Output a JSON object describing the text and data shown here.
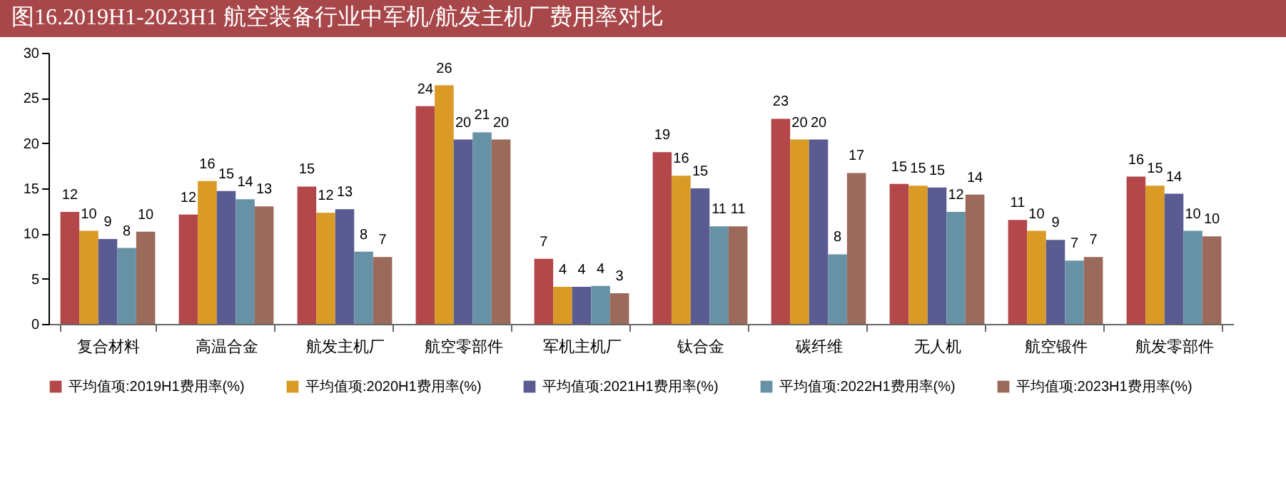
{
  "chart_data": {
    "type": "bar",
    "title": "图16.2019H1-2023H1 航空装备行业中军机/航发主机厂费用率对比",
    "categories": [
      "复合材料",
      "高温合金",
      "航发主机厂",
      "航空零部件",
      "军机主机厂",
      "钛合金",
      "碳纤维",
      "无人机",
      "航空锻件",
      "航发零部件"
    ],
    "series": [
      {
        "name": "平均值项:2019H1费用率(%)",
        "color": "#b3474a",
        "values": [
          12.4,
          12.1,
          15.2,
          24.1,
          7.2,
          19.0,
          22.7,
          15.5,
          11.5,
          16.3
        ],
        "value_labels": [
          "12",
          "12",
          "15",
          "24",
          "7",
          "19",
          "23",
          "15",
          "11",
          "16"
        ]
      },
      {
        "name": "平均值项:2020H1费用率(%)",
        "color": "#d99a26",
        "values": [
          10.3,
          15.8,
          12.3,
          26.4,
          4.1,
          16.4,
          20.4,
          15.3,
          10.3,
          15.3
        ],
        "value_labels": [
          "10",
          "16",
          "12",
          "26",
          "4",
          "16",
          "20",
          "15",
          "10",
          "15"
        ]
      },
      {
        "name": "平均值项:2021H1费用率(%)",
        "color": "#5a5c91",
        "values": [
          9.4,
          14.7,
          12.7,
          20.4,
          4.1,
          15.0,
          20.4,
          15.1,
          9.3,
          14.4
        ],
        "value_labels": [
          "9",
          "15",
          "13",
          "20",
          "4",
          "15",
          "20",
          "15",
          "9",
          "14"
        ]
      },
      {
        "name": "平均值项:2022H1费用率(%)",
        "color": "#6792a6",
        "values": [
          8.4,
          13.8,
          8.0,
          21.2,
          4.2,
          10.8,
          7.7,
          12.4,
          7.0,
          10.3
        ],
        "value_labels": [
          "8",
          "14",
          "8",
          "21",
          "4",
          "11",
          "8",
          "12",
          "7",
          "10"
        ]
      },
      {
        "name": "平均值项:2023H1费用率(%)",
        "color": "#9c6a5a",
        "values": [
          10.2,
          13.0,
          7.4,
          20.4,
          3.4,
          10.8,
          16.7,
          14.3,
          7.4,
          9.7
        ],
        "value_labels": [
          "10",
          "13",
          "7",
          "20",
          "3",
          "11",
          "17",
          "14",
          "7",
          "10"
        ]
      }
    ],
    "ylim": [
      0,
      30
    ],
    "yticks": [
      0,
      5,
      10,
      15,
      20,
      25,
      30
    ],
    "grid": false,
    "legend": "bottom"
  }
}
